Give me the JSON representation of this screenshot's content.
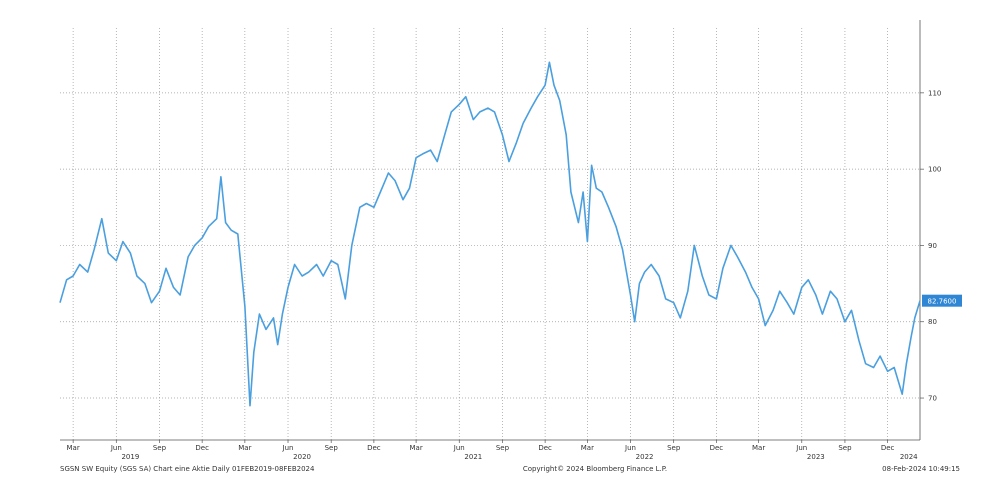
{
  "chart_data": {
    "type": "line",
    "title": "",
    "xlabel": "",
    "ylabel": "",
    "x_range": [
      "2019-02-01",
      "2024-02-08"
    ],
    "ylim": [
      64.5,
      118.5
    ],
    "y_ticks": [
      70,
      80,
      90,
      100,
      110
    ],
    "y_tick_labels": [
      "70",
      "80",
      "90",
      "100",
      "110"
    ],
    "x_month_ticks": [
      {
        "date": "2019-03-01",
        "label": "Mar"
      },
      {
        "date": "2019-06-01",
        "label": "Jun"
      },
      {
        "date": "2019-09-01",
        "label": "Sep"
      },
      {
        "date": "2019-12-01",
        "label": "Dec"
      },
      {
        "date": "2020-03-01",
        "label": "Mar"
      },
      {
        "date": "2020-06-01",
        "label": "Jun"
      },
      {
        "date": "2020-09-01",
        "label": "Sep"
      },
      {
        "date": "2020-12-01",
        "label": "Dec"
      },
      {
        "date": "2021-03-01",
        "label": "Mar"
      },
      {
        "date": "2021-06-01",
        "label": "Jun"
      },
      {
        "date": "2021-09-01",
        "label": "Sep"
      },
      {
        "date": "2021-12-01",
        "label": "Dec"
      },
      {
        "date": "2022-03-01",
        "label": "Mar"
      },
      {
        "date": "2022-06-01",
        "label": "Jun"
      },
      {
        "date": "2022-09-01",
        "label": "Sep"
      },
      {
        "date": "2022-12-01",
        "label": "Dec"
      },
      {
        "date": "2023-03-01",
        "label": "Mar"
      },
      {
        "date": "2023-06-01",
        "label": "Jun"
      },
      {
        "date": "2023-09-01",
        "label": "Sep"
      },
      {
        "date": "2023-12-01",
        "label": "Dec"
      }
    ],
    "x_year_labels": [
      {
        "date": "2019-07-01",
        "label": "2019"
      },
      {
        "date": "2020-07-01",
        "label": "2020"
      },
      {
        "date": "2021-07-01",
        "label": "2021"
      },
      {
        "date": "2022-07-01",
        "label": "2022"
      },
      {
        "date": "2023-07-01",
        "label": "2023"
      },
      {
        "date": "2024-01-15",
        "label": "2024"
      }
    ],
    "gridlines": true,
    "series": [
      {
        "color": "#4a9fdf",
        "last_value_label": "82.7600",
        "points": [
          [
            "2019-02-01",
            82.5
          ],
          [
            "2019-02-15",
            85.5
          ],
          [
            "2019-03-01",
            86.0
          ],
          [
            "2019-03-15",
            87.5
          ],
          [
            "2019-04-01",
            86.5
          ],
          [
            "2019-04-15",
            89.5
          ],
          [
            "2019-05-01",
            93.5
          ],
          [
            "2019-05-15",
            89.0
          ],
          [
            "2019-06-01",
            88.0
          ],
          [
            "2019-06-15",
            90.5
          ],
          [
            "2019-07-01",
            89.0
          ],
          [
            "2019-07-15",
            86.0
          ],
          [
            "2019-08-01",
            85.0
          ],
          [
            "2019-08-15",
            82.5
          ],
          [
            "2019-09-01",
            84.0
          ],
          [
            "2019-09-15",
            87.0
          ],
          [
            "2019-10-01",
            84.5
          ],
          [
            "2019-10-15",
            83.5
          ],
          [
            "2019-11-01",
            88.5
          ],
          [
            "2019-11-15",
            90.0
          ],
          [
            "2019-12-01",
            91.0
          ],
          [
            "2019-12-15",
            92.5
          ],
          [
            "2020-01-01",
            93.5
          ],
          [
            "2020-01-10",
            99.0
          ],
          [
            "2020-01-20",
            93.0
          ],
          [
            "2020-02-01",
            92.0
          ],
          [
            "2020-02-15",
            91.5
          ],
          [
            "2020-03-01",
            82.0
          ],
          [
            "2020-03-12",
            69.0
          ],
          [
            "2020-03-20",
            76.0
          ],
          [
            "2020-04-01",
            81.0
          ],
          [
            "2020-04-15",
            79.0
          ],
          [
            "2020-05-01",
            80.5
          ],
          [
            "2020-05-10",
            77.0
          ],
          [
            "2020-05-20",
            81.0
          ],
          [
            "2020-06-01",
            84.5
          ],
          [
            "2020-06-15",
            87.5
          ],
          [
            "2020-07-01",
            86.0
          ],
          [
            "2020-07-15",
            86.5
          ],
          [
            "2020-08-01",
            87.5
          ],
          [
            "2020-08-15",
            86.0
          ],
          [
            "2020-09-01",
            88.0
          ],
          [
            "2020-09-15",
            87.5
          ],
          [
            "2020-10-01",
            83.0
          ],
          [
            "2020-10-15",
            90.0
          ],
          [
            "2020-11-01",
            95.0
          ],
          [
            "2020-11-15",
            95.5
          ],
          [
            "2020-12-01",
            95.0
          ],
          [
            "2020-12-15",
            97.0
          ],
          [
            "2021-01-01",
            99.5
          ],
          [
            "2021-01-15",
            98.5
          ],
          [
            "2021-02-01",
            96.0
          ],
          [
            "2021-02-15",
            97.5
          ],
          [
            "2021-03-01",
            101.5
          ],
          [
            "2021-03-15",
            102.0
          ],
          [
            "2021-04-01",
            102.5
          ],
          [
            "2021-04-15",
            101.0
          ],
          [
            "2021-05-01",
            104.5
          ],
          [
            "2021-05-15",
            107.5
          ],
          [
            "2021-06-01",
            108.5
          ],
          [
            "2021-06-15",
            109.5
          ],
          [
            "2021-07-01",
            106.5
          ],
          [
            "2021-07-15",
            107.5
          ],
          [
            "2021-08-01",
            108.0
          ],
          [
            "2021-08-15",
            107.5
          ],
          [
            "2021-09-01",
            104.5
          ],
          [
            "2021-09-15",
            101.0
          ],
          [
            "2021-10-01",
            103.5
          ],
          [
            "2021-10-15",
            106.0
          ],
          [
            "2021-11-01",
            108.0
          ],
          [
            "2021-11-15",
            109.5
          ],
          [
            "2021-12-01",
            111.0
          ],
          [
            "2021-12-10",
            114.0
          ],
          [
            "2021-12-20",
            111.0
          ],
          [
            "2022-01-01",
            109.0
          ],
          [
            "2022-01-15",
            104.5
          ],
          [
            "2022-01-25",
            97.0
          ],
          [
            "2022-02-10",
            93.0
          ],
          [
            "2022-02-20",
            97.0
          ],
          [
            "2022-03-01",
            90.5
          ],
          [
            "2022-03-10",
            100.5
          ],
          [
            "2022-03-20",
            97.5
          ],
          [
            "2022-04-01",
            97.0
          ],
          [
            "2022-04-15",
            95.0
          ],
          [
            "2022-05-01",
            92.5
          ],
          [
            "2022-05-15",
            89.5
          ],
          [
            "2022-06-01",
            83.5
          ],
          [
            "2022-06-10",
            80.0
          ],
          [
            "2022-06-20",
            85.0
          ],
          [
            "2022-07-01",
            86.5
          ],
          [
            "2022-07-15",
            87.5
          ],
          [
            "2022-08-01",
            86.0
          ],
          [
            "2022-08-15",
            83.0
          ],
          [
            "2022-09-01",
            82.5
          ],
          [
            "2022-09-15",
            80.5
          ],
          [
            "2022-10-01",
            84.0
          ],
          [
            "2022-10-15",
            90.0
          ],
          [
            "2022-11-01",
            86.0
          ],
          [
            "2022-11-15",
            83.5
          ],
          [
            "2022-12-01",
            83.0
          ],
          [
            "2022-12-15",
            87.0
          ],
          [
            "2023-01-01",
            90.0
          ],
          [
            "2023-01-15",
            88.5
          ],
          [
            "2023-02-01",
            86.5
          ],
          [
            "2023-02-15",
            84.5
          ],
          [
            "2023-03-01",
            83.0
          ],
          [
            "2023-03-15",
            79.5
          ],
          [
            "2023-04-01",
            81.5
          ],
          [
            "2023-04-15",
            84.0
          ],
          [
            "2023-05-01",
            82.5
          ],
          [
            "2023-05-15",
            81.0
          ],
          [
            "2023-06-01",
            84.5
          ],
          [
            "2023-06-15",
            85.5
          ],
          [
            "2023-07-01",
            83.5
          ],
          [
            "2023-07-15",
            81.0
          ],
          [
            "2023-08-01",
            84.0
          ],
          [
            "2023-08-15",
            83.0
          ],
          [
            "2023-09-01",
            80.0
          ],
          [
            "2023-09-15",
            81.5
          ],
          [
            "2023-10-01",
            77.5
          ],
          [
            "2023-10-15",
            74.5
          ],
          [
            "2023-11-01",
            74.0
          ],
          [
            "2023-11-15",
            75.5
          ],
          [
            "2023-12-01",
            73.5
          ],
          [
            "2023-12-15",
            74.0
          ],
          [
            "2024-01-01",
            70.5
          ],
          [
            "2024-01-10",
            74.5
          ],
          [
            "2024-01-20",
            78.0
          ],
          [
            "2024-01-28",
            80.5
          ],
          [
            "2024-02-08",
            82.76
          ]
        ]
      }
    ],
    "footer": {
      "left": "SGSN SW Equity (SGS SA) Chart eine Aktie  Daily 01FEB2019-08FEB2024",
      "center": "Copyright© 2024 Bloomberg Finance L.P.",
      "right": "08-Feb-2024 10:49:15"
    }
  }
}
